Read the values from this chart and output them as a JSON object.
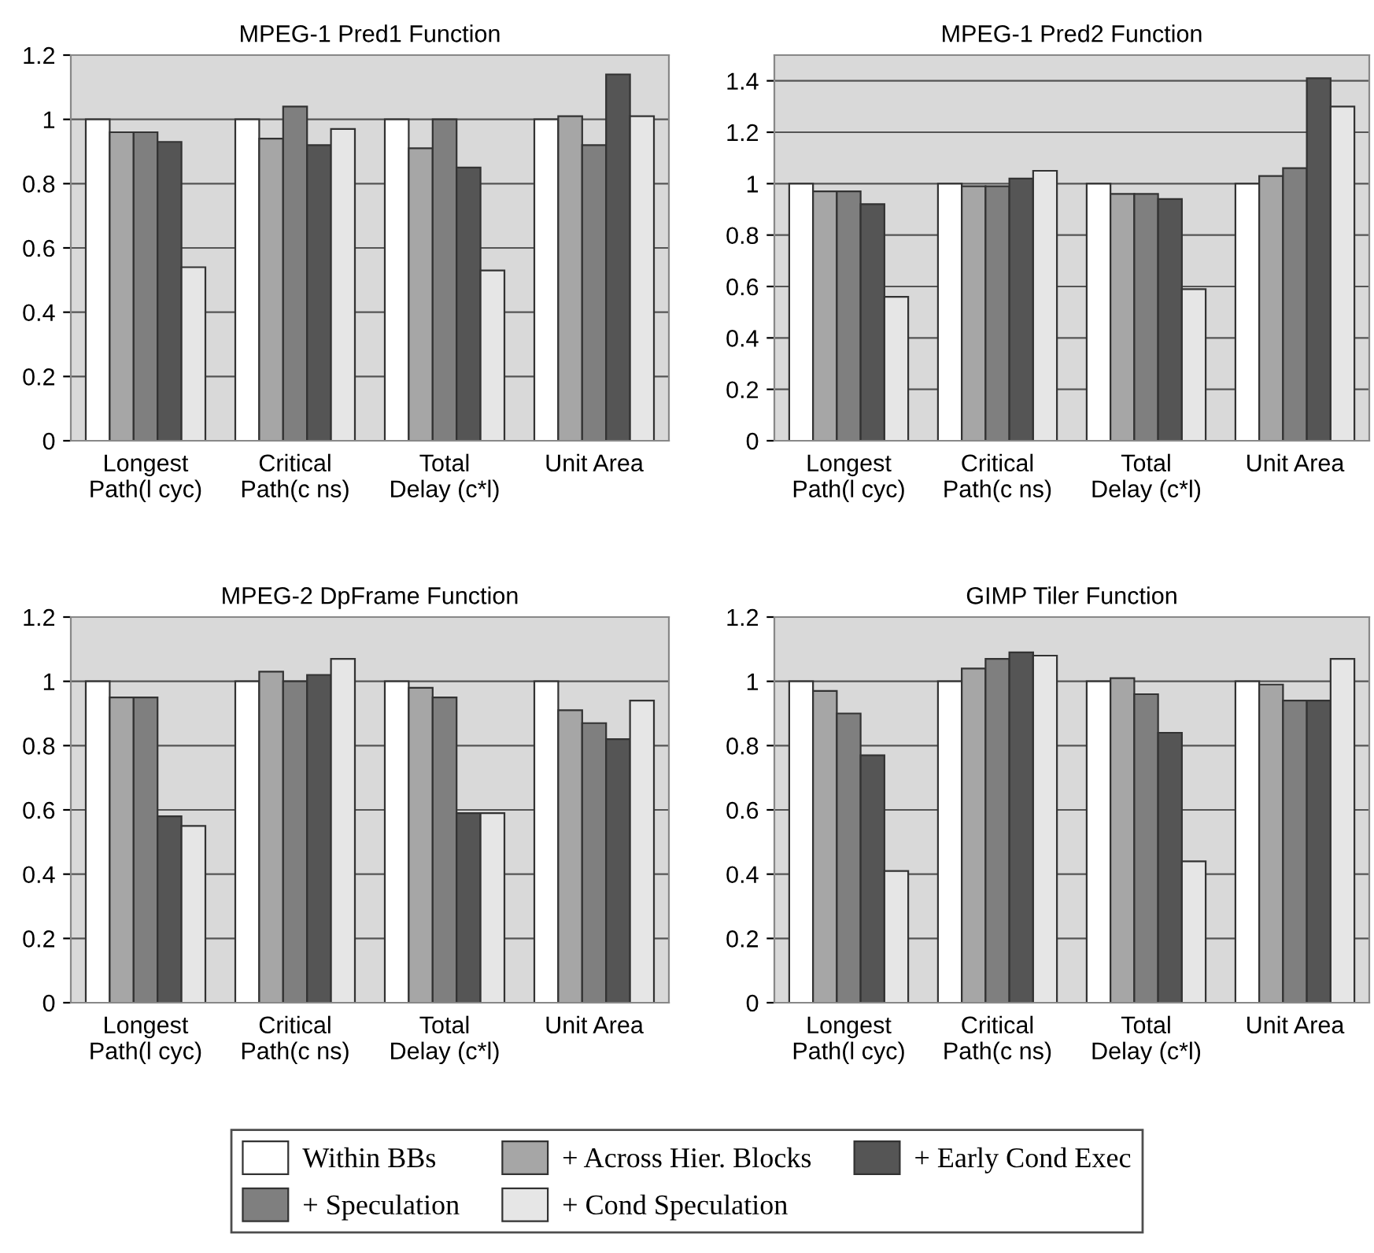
{
  "chart_data": [
    {
      "type": "bar",
      "title": "MPEG-1 Pred1 Function",
      "categories": [
        "Longest\nPath(l cyc)",
        "Critical\nPath(c ns)",
        "Total\nDelay (c*l)",
        "Unit Area"
      ],
      "ylim": [
        0,
        1.2
      ],
      "yticks": [
        0,
        0.2,
        0.4,
        0.6,
        0.8,
        1,
        1.2
      ],
      "grid": "y",
      "legend": "bottom",
      "series": [
        {
          "name": "Within BBs",
          "color": "#ffffff",
          "values": [
            1,
            1,
            1,
            1
          ]
        },
        {
          "name": "+ Across Hier. Blocks",
          "color": "#a6a6a6",
          "values": [
            0.96,
            0.94,
            0.91,
            1.01
          ]
        },
        {
          "name": "+ Speculation",
          "color": "#7f7f7f",
          "values": [
            0.96,
            1.04,
            1.0,
            0.92
          ]
        },
        {
          "name": "+ Early Cond Exec",
          "color": "#555555",
          "values": [
            0.93,
            0.92,
            0.85,
            1.14
          ]
        },
        {
          "name": "+ Cond Speculation",
          "color": "#e6e6e6",
          "values": [
            0.54,
            0.97,
            0.53,
            1.01
          ]
        }
      ]
    },
    {
      "type": "bar",
      "title": "MPEG-1 Pred2 Function",
      "categories": [
        "Longest\nPath(l cyc)",
        "Critical\nPath(c ns)",
        "Total\nDelay (c*l)",
        "Unit Area"
      ],
      "ylim": [
        0,
        1.5
      ],
      "yticks": [
        0,
        0.2,
        0.4,
        0.6,
        0.8,
        1,
        1.2,
        1.4
      ],
      "grid": "y",
      "series": [
        {
          "color": "#ffffff",
          "values": [
            1,
            1,
            1,
            1
          ]
        },
        {
          "color": "#a6a6a6",
          "values": [
            0.97,
            0.99,
            0.96,
            1.03
          ]
        },
        {
          "color": "#7f7f7f",
          "values": [
            0.97,
            0.99,
            0.96,
            1.06
          ]
        },
        {
          "color": "#555555",
          "values": [
            0.92,
            1.02,
            0.94,
            1.41
          ]
        },
        {
          "color": "#e6e6e6",
          "values": [
            0.56,
            1.05,
            0.59,
            1.3
          ]
        }
      ]
    },
    {
      "type": "bar",
      "title": "MPEG-2 DpFrame Function",
      "categories": [
        "Longest\nPath(l cyc)",
        "Critical\nPath(c ns)",
        "Total\nDelay (c*l)",
        "Unit Area"
      ],
      "ylim": [
        0,
        1.2
      ],
      "yticks": [
        0,
        0.2,
        0.4,
        0.6,
        0.8,
        1,
        1.2
      ],
      "grid": "y",
      "series": [
        {
          "color": "#ffffff",
          "values": [
            1,
            1,
            1,
            1
          ]
        },
        {
          "color": "#a6a6a6",
          "values": [
            0.95,
            1.03,
            0.98,
            0.91
          ]
        },
        {
          "color": "#7f7f7f",
          "values": [
            0.95,
            1.0,
            0.95,
            0.87
          ]
        },
        {
          "color": "#555555",
          "values": [
            0.58,
            1.02,
            0.59,
            0.82
          ]
        },
        {
          "color": "#e6e6e6",
          "values": [
            0.55,
            1.07,
            0.59,
            0.94
          ]
        }
      ]
    },
    {
      "type": "bar",
      "title": "GIMP Tiler Function",
      "categories": [
        "Longest\nPath(l cyc)",
        "Critical\nPath(c ns)",
        "Total\nDelay (c*l)",
        "Unit Area"
      ],
      "ylim": [
        0,
        1.2
      ],
      "yticks": [
        0,
        0.2,
        0.4,
        0.6,
        0.8,
        1,
        1.2
      ],
      "grid": "y",
      "series": [
        {
          "color": "#ffffff",
          "values": [
            1,
            1,
            1,
            1
          ]
        },
        {
          "color": "#a6a6a6",
          "values": [
            0.97,
            1.04,
            1.01,
            0.99
          ]
        },
        {
          "color": "#7f7f7f",
          "values": [
            0.9,
            1.07,
            0.96,
            0.94
          ]
        },
        {
          "color": "#555555",
          "values": [
            0.77,
            1.09,
            0.84,
            0.94
          ]
        },
        {
          "color": "#e6e6e6",
          "values": [
            0.41,
            1.08,
            0.44,
            1.07
          ]
        }
      ]
    }
  ]
}
